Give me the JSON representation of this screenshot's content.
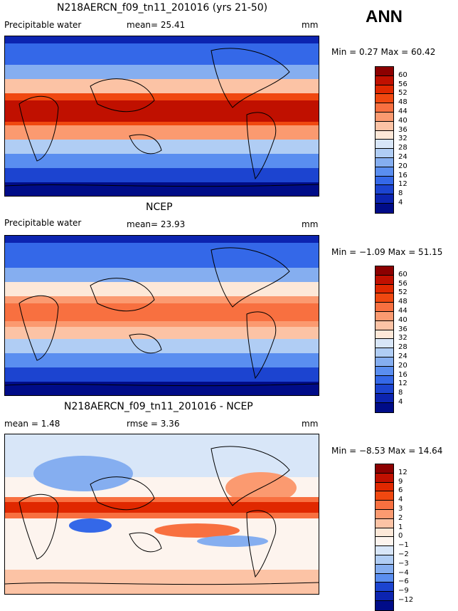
{
  "season": "ANN",
  "panels": [
    {
      "title": "N218AERCN_f09_tn11_201016 (yrs 21-50)",
      "variable": "Precipitable water",
      "stat": "mean=  25.41",
      "unit": "mm",
      "minmax": "Min =    0.27  Max =   60.42",
      "levels": [
        "60",
        "56",
        "52",
        "48",
        "44",
        "40",
        "36",
        "32",
        "28",
        "24",
        "20",
        "16",
        "12",
        "8",
        "4"
      ],
      "colors": [
        "#8c0000",
        "#c01000",
        "#e02800",
        "#f04810",
        "#f87040",
        "#fb9a70",
        "#fcc3a5",
        "#fde8d8",
        "#d8e6f8",
        "#b0cdf4",
        "#85aef0",
        "#5a8ef0",
        "#3468e8",
        "#1c44d0",
        "#0c24b0",
        "#000c88"
      ],
      "mean": 25.41,
      "min": 0.27,
      "max": 60.42
    },
    {
      "title": "NCEP",
      "variable": "Precipitable water",
      "stat": "mean=  23.93",
      "unit": "mm",
      "minmax": "Min =  −1.09  Max =   51.15",
      "levels": [
        "60",
        "56",
        "52",
        "48",
        "44",
        "40",
        "36",
        "32",
        "28",
        "24",
        "20",
        "16",
        "12",
        "8",
        "4"
      ],
      "colors": [
        "#8c0000",
        "#c01000",
        "#e02800",
        "#f04810",
        "#f87040",
        "#fb9a70",
        "#fcc3a5",
        "#fde8d8",
        "#d8e6f8",
        "#b0cdf4",
        "#85aef0",
        "#5a8ef0",
        "#3468e8",
        "#1c44d0",
        "#0c24b0",
        "#000c88"
      ],
      "mean": 23.93,
      "min": -1.09,
      "max": 51.15
    },
    {
      "title": "N218AERCN_f09_tn11_201016 - NCEP",
      "variable": "mean =   1.48",
      "stat": "rmse =   3.36",
      "unit": "mm",
      "minmax": "Min =  −8.53  Max =   14.64",
      "levels": [
        "12",
        "9",
        "6",
        "4",
        "3",
        "2",
        "1",
        "0",
        "−1",
        "−2",
        "−3",
        "−4",
        "−6",
        "−9",
        "−12"
      ],
      "colors": [
        "#8c0000",
        "#c01000",
        "#e02800",
        "#f04810",
        "#f87040",
        "#fb9a70",
        "#fcc3a5",
        "#fde8d8",
        "#fdf4ee",
        "#d8e6f8",
        "#b0cdf4",
        "#85aef0",
        "#5a8ef0",
        "#1c44d0",
        "#0c24b0",
        "#000c88"
      ],
      "mean": 1.48,
      "rmse": 3.36,
      "min": -8.53,
      "max": 14.64
    }
  ]
}
